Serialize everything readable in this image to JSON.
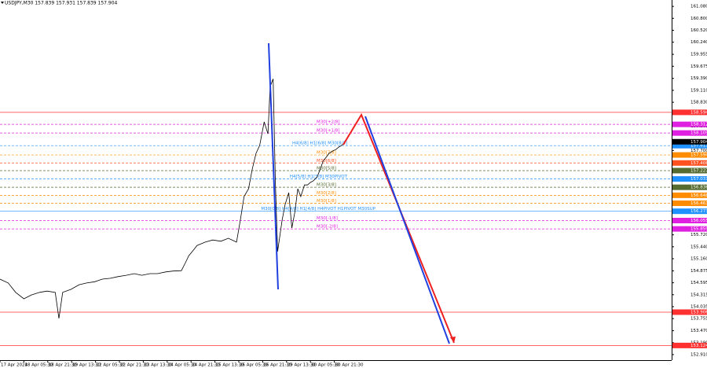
{
  "chart_data": {
    "type": "line",
    "title": "USDJPY,M30 157.839 157.931 157.839 157.904",
    "last_price": 157.904,
    "xlim": [
      0,
      900
    ],
    "xticks": [
      {
        "value": 0,
        "label": "17 Apr 2024"
      },
      {
        "value": 32,
        "label": "18 Apr 05:30"
      },
      {
        "value": 64,
        "label": "18 Apr 21:30"
      },
      {
        "value": 96,
        "label": "19 Apr 13:30"
      },
      {
        "value": 128,
        "label": "22 Apr 05:30"
      },
      {
        "value": 160,
        "label": "22 Apr 21:30"
      },
      {
        "value": 192,
        "label": "23 Apr 13:30"
      },
      {
        "value": 224,
        "label": "24 Apr 05:30"
      },
      {
        "value": 256,
        "label": "24 Apr 21:30"
      },
      {
        "value": 288,
        "label": "25 Apr 13:30"
      },
      {
        "value": 320,
        "label": "26 Apr 05:30"
      },
      {
        "value": 352,
        "label": "26 Apr 21:30"
      },
      {
        "value": 384,
        "label": "29 Apr 13:30"
      },
      {
        "value": 416,
        "label": "30 Apr 05:30"
      },
      {
        "value": 448,
        "label": "30 Apr 21:30"
      }
    ],
    "ylim": [
      152.78,
      161.23
    ],
    "yticks": [
      {
        "value": 161.08,
        "label": "161.080"
      },
      {
        "value": 160.8,
        "label": "160.800"
      },
      {
        "value": 160.52,
        "label": "160.520"
      },
      {
        "value": 160.24,
        "label": "160.240"
      },
      {
        "value": 159.955,
        "label": "159.955"
      },
      {
        "value": 159.675,
        "label": "159.675"
      },
      {
        "value": 159.39,
        "label": "159.390"
      },
      {
        "value": 159.11,
        "label": "159.110"
      },
      {
        "value": 158.83,
        "label": "158.830"
      },
      {
        "value": 158.265,
        "label": "158.265"
      },
      {
        "value": 157.7,
        "label": "157.700"
      },
      {
        "value": 155.72,
        "label": "155.720"
      },
      {
        "value": 155.44,
        "label": "155.440"
      },
      {
        "value": 155.16,
        "label": "155.160"
      },
      {
        "value": 154.875,
        "label": "154.875"
      },
      {
        "value": 154.595,
        "label": "154.595"
      },
      {
        "value": 154.315,
        "label": "154.315"
      },
      {
        "value": 154.035,
        "label": "154.035"
      },
      {
        "value": 153.755,
        "label": "153.755"
      },
      {
        "value": 153.47,
        "label": "153.470"
      },
      {
        "value": 153.19,
        "label": "153.190"
      },
      {
        "value": 152.91,
        "label": "152.910"
      }
    ],
    "x": [
      0,
      11,
      21,
      32,
      42,
      53,
      63,
      74,
      79,
      84,
      95,
      106,
      116,
      127,
      137,
      148,
      158,
      169,
      180,
      190,
      201,
      211,
      222,
      232,
      243,
      248,
      253,
      259,
      264,
      275,
      285,
      296,
      306,
      317,
      322,
      327,
      333,
      338,
      343,
      348,
      354,
      359,
      362,
      366,
      369,
      372,
      375,
      378,
      382,
      387,
      391,
      395,
      399,
      403,
      408,
      412,
      416,
      420,
      425,
      429,
      433,
      437,
      441,
      446,
      450,
      454,
      458,
      461
    ],
    "values": [
      154.68,
      154.59,
      154.37,
      154.22,
      154.31,
      154.37,
      154.4,
      154.37,
      153.76,
      154.37,
      154.44,
      154.55,
      154.59,
      154.62,
      154.68,
      154.7,
      154.74,
      154.77,
      154.81,
      154.77,
      154.81,
      154.81,
      154.85,
      154.87,
      154.88,
      155.05,
      155.23,
      155.36,
      155.47,
      155.55,
      155.6,
      155.57,
      155.64,
      155.55,
      156.06,
      156.62,
      156.8,
      157.26,
      157.63,
      157.82,
      158.37,
      158.09,
      159.2,
      159.38,
      156.99,
      155.33,
      155.7,
      156.06,
      156.43,
      156.71,
      155.88,
      156.25,
      156.8,
      156.62,
      156.89,
      156.89,
      156.95,
      156.99,
      157.08,
      157.26,
      157.45,
      157.54,
      157.63,
      157.69,
      157.72,
      157.78,
      157.82,
      157.87
    ],
    "color": "#000000",
    "levels": [
      {
        "value": 158.594,
        "color": "#ff3030",
        "dash": false
      },
      {
        "value": 158.312,
        "color": "#e020e0",
        "dash": true,
        "label": "M30[+2/8]"
      },
      {
        "value": 158.109,
        "color": "#e020e0",
        "dash": true,
        "label": "M30[+1/8]"
      },
      {
        "value": 157.813,
        "color": "#1e90ff",
        "dash": true,
        "label": "H4[6/8] H1[6/8] M30[8/8]"
      },
      {
        "value": 157.594,
        "color": "#ff8c00",
        "dash": true,
        "label": "M30[7/8]"
      },
      {
        "value": 157.406,
        "color": "#ff5020",
        "dash": true,
        "label": "M30[6/8]"
      },
      {
        "value": 157.227,
        "color": "#556b2f",
        "dash": true,
        "label": "M30[5/8]"
      },
      {
        "value": 157.031,
        "color": "#1e90ff",
        "dash": true,
        "label": "H4[5/8] H1[5/8] M30PIVOT"
      },
      {
        "value": 156.836,
        "color": "#556b2f",
        "dash": true,
        "label": "M30[3/8]"
      },
      {
        "value": 156.648,
        "color": "#ff8c00",
        "dash": true,
        "label": "M30[2/8]"
      },
      {
        "value": 156.461,
        "color": "#ff8c00",
        "dash": true,
        "label": "M30[1/8]"
      },
      {
        "value": 156.273,
        "color": "#1e90ff",
        "dash": false,
        "label": "M30[0/8] H4[4/8] H1[4/8] H4PIVOT H1PIVOT M30SUP"
      },
      {
        "value": 156.055,
        "color": "#e020e0",
        "dash": true,
        "label": "M30[-1/8]"
      },
      {
        "value": 155.859,
        "color": "#e020e0",
        "dash": true,
        "label": "M30[-2/8]"
      },
      {
        "value": 153.906,
        "color": "#ff3030",
        "dash": false
      },
      {
        "value": 153.124,
        "color": "#ff3030",
        "dash": false
      }
    ]
  }
}
